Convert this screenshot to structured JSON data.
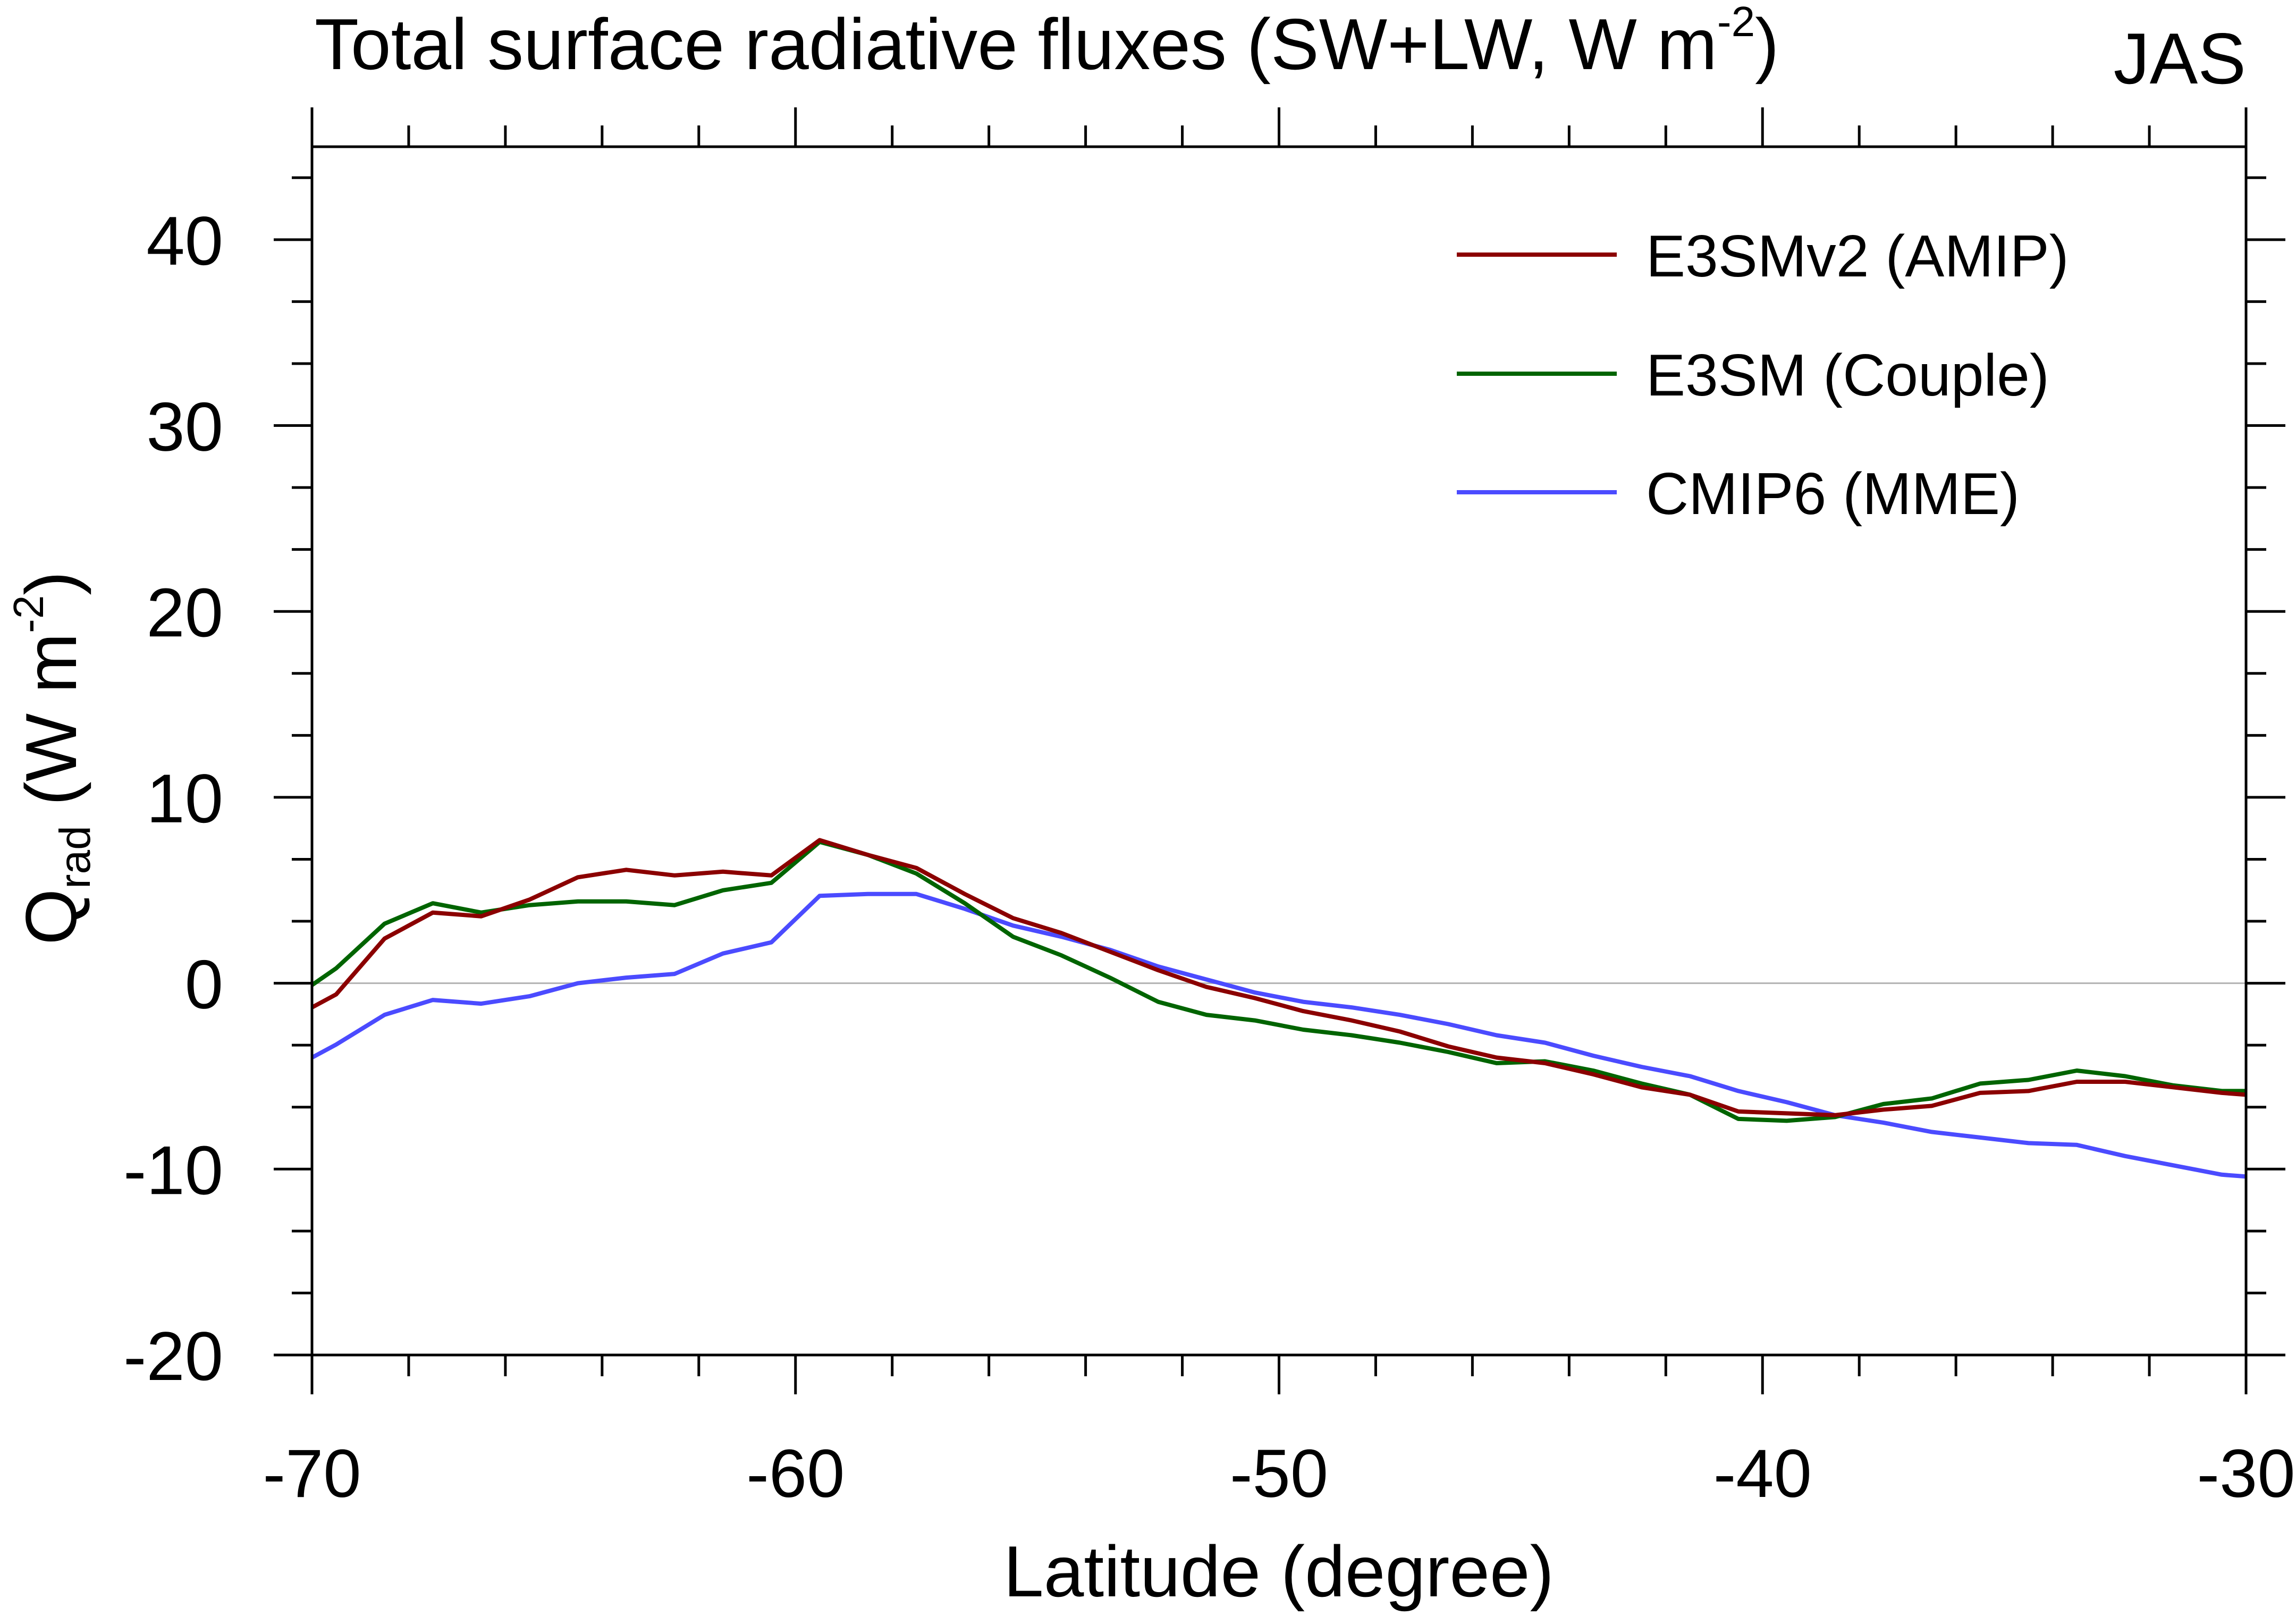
{
  "chart_data": {
    "type": "line",
    "title": {
      "main": "Total surface radiative fluxes (SW+LW, W m",
      "superscript": "-2",
      "end": ")"
    },
    "season": "JAS",
    "xlabel": "Latitude (degree)",
    "ylabel": {
      "symbol": "Q",
      "subscript": "rad",
      "units": " (W m",
      "superscript": "-2",
      "end": ")"
    },
    "xlim": [
      -70,
      -30
    ],
    "ylim": [
      -20,
      45
    ],
    "xticks": [
      -70,
      -60,
      -50,
      -40,
      -30
    ],
    "xtick_labels": [
      "-70",
      "-60",
      "-50",
      "-40",
      "-30"
    ],
    "x_minor_step": 2,
    "yticks": [
      -20,
      -10,
      0,
      10,
      20,
      30,
      40
    ],
    "ytick_labels": [
      "-20",
      "-10",
      "0",
      "10",
      "20",
      "30",
      "40"
    ],
    "y_minor_per_major": 3,
    "reference_line_y": 0,
    "grid": false,
    "legend_position": "top-right",
    "x": [
      -70,
      -69.5,
      -68.5,
      -67.5,
      -66.5,
      -65.5,
      -64.5,
      -63.5,
      -62.5,
      -61.5,
      -60.5,
      -59.5,
      -58.5,
      -57.5,
      -56.5,
      -55.5,
      -54.5,
      -53.5,
      -52.5,
      -51.5,
      -50.5,
      -49.5,
      -48.5,
      -47.5,
      -46.5,
      -45.5,
      -44.5,
      -43.5,
      -42.5,
      -41.5,
      -40.5,
      -39.5,
      -38.5,
      -37.5,
      -36.5,
      -35.5,
      -34.5,
      -33.5,
      -32.5,
      -31.5,
      -30.5,
      -30
    ],
    "series": [
      {
        "name": "E3SMv2 (AMIP)",
        "color": "#8B0000",
        "values": [
          -1.3,
          -0.6,
          2.4,
          3.8,
          3.6,
          4.5,
          5.7,
          6.1,
          5.8,
          6.0,
          5.8,
          7.7,
          6.9,
          6.2,
          4.8,
          3.5,
          2.7,
          1.7,
          0.7,
          -0.2,
          -0.8,
          -1.5,
          -2.0,
          -2.6,
          -3.4,
          -4.0,
          -4.3,
          -4.9,
          -5.6,
          -6.0,
          -6.9,
          -7.0,
          -7.1,
          -6.8,
          -6.6,
          -5.9,
          -5.8,
          -5.3,
          -5.3,
          -5.6,
          -5.9,
          -6.0
        ]
      },
      {
        "name": "E3SM (Couple)",
        "color": "#006400",
        "values": [
          -0.1,
          0.8,
          3.2,
          4.3,
          3.8,
          4.2,
          4.4,
          4.4,
          4.2,
          5.0,
          5.4,
          7.6,
          6.9,
          5.9,
          4.3,
          2.5,
          1.5,
          0.3,
          -1.0,
          -1.7,
          -2.0,
          -2.5,
          -2.8,
          -3.2,
          -3.7,
          -4.3,
          -4.2,
          -4.7,
          -5.4,
          -6.0,
          -7.3,
          -7.4,
          -7.2,
          -6.5,
          -6.2,
          -5.4,
          -5.2,
          -4.7,
          -5.0,
          -5.5,
          -5.8,
          -5.8
        ]
      },
      {
        "name": "CMIP6 (MME)",
        "color": "#4B4BFF",
        "values": [
          -4.0,
          -3.3,
          -1.7,
          -0.9,
          -1.1,
          -0.7,
          0.0,
          0.3,
          0.5,
          1.6,
          2.2,
          4.7,
          4.8,
          4.8,
          4.0,
          3.1,
          2.5,
          1.8,
          0.9,
          0.2,
          -0.5,
          -1.0,
          -1.3,
          -1.7,
          -2.2,
          -2.8,
          -3.2,
          -3.9,
          -4.5,
          -5.0,
          -5.8,
          -6.4,
          -7.1,
          -7.5,
          -8.0,
          -8.3,
          -8.6,
          -8.7,
          -9.3,
          -9.8,
          -10.3,
          -10.4
        ]
      }
    ]
  }
}
